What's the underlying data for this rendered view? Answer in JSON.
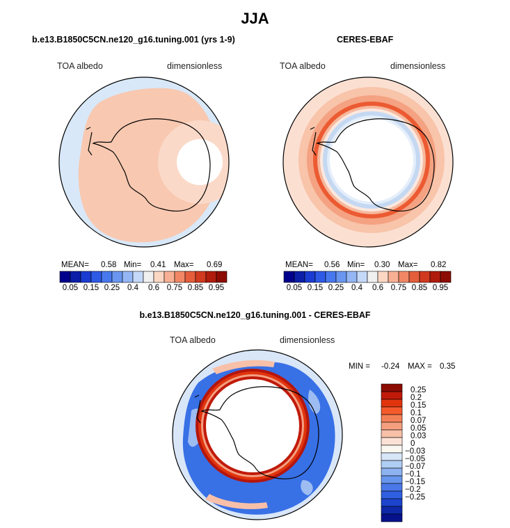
{
  "title": "JJA",
  "colors": {
    "ocean_pale_blue": "#d8e8f8",
    "light_orange": "#f8c8b0",
    "orange": "#f49a78",
    "red_orange": "#ec5a32",
    "deep_red": "#b4160c",
    "pale_blue": "#c4d8f2",
    "mid_blue": "#3870e6",
    "dark_blue": "#0a1090"
  },
  "panels": {
    "model": {
      "title": "b.e13.B1850C5CN.ne120_g16.tuning.001 (yrs 1-9)",
      "variable": "TOA albedo",
      "units": "dimensionless",
      "mean_label": "MEAN=",
      "mean": "0.58",
      "min_label": "Min=",
      "min": "0.41",
      "max_label": "Max=",
      "max": "0.69"
    },
    "obs": {
      "title": "CERES-EBAF",
      "variable": "TOA albedo",
      "units": "dimensionless",
      "mean_label": "MEAN=",
      "mean": "0.56",
      "min_label": "Min=",
      "min": "0.30",
      "max_label": "Max=",
      "max": "0.82"
    },
    "diff": {
      "title": "b.e13.B1850C5CN.ne120_g16.tuning.001 - CERES-EBAF",
      "variable": "TOA albedo",
      "units": "dimensionless",
      "min_label": "MIN =",
      "min": "-0.24",
      "max_label": "MAX =",
      "max": "0.35"
    }
  },
  "colorbar_top": {
    "ticks": [
      "0.05",
      "0.15",
      "0.25",
      "0.4",
      "0.6",
      "0.75",
      "0.85",
      "0.95"
    ],
    "colors": [
      "#00008c",
      "#0a1ea8",
      "#1a3cd0",
      "#2e5ae6",
      "#4878ee",
      "#6a96f0",
      "#94b6f4",
      "#c4d8f8",
      "#f0f0f0",
      "#fbd7c3",
      "#f8b094",
      "#f08866",
      "#e45e3c",
      "#d03a1e",
      "#b01c0c",
      "#8c0c04"
    ]
  },
  "colorbar_diff": {
    "ticks": [
      "0.25",
      "0.2",
      "0.15",
      "0.1",
      "0.07",
      "0.05",
      "0.03",
      "0",
      "−0.03",
      "−0.05",
      "−0.07",
      "−0.1",
      "−0.15",
      "−0.2",
      "−0.25"
    ],
    "colors": [
      "#8c0c04",
      "#c01a0a",
      "#e0340e",
      "#f45a2c",
      "#f48058",
      "#f4a080",
      "#f8c0a8",
      "#fce2d6",
      "#fbf8f2",
      "#d8e6f8",
      "#b0cdf4",
      "#8cb2f0",
      "#6896ec",
      "#4a78e8",
      "#3060e2",
      "#1c44cc",
      "#0e28a8",
      "#06128a"
    ]
  }
}
